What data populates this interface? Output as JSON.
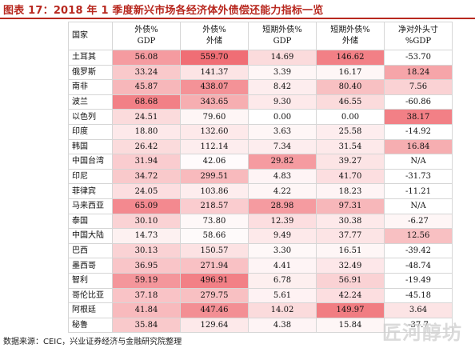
{
  "title": "图表 17：2018 年 1 季度新兴市场各经济体外债偿还能力指标一览",
  "headers": [
    {
      "lines": [
        "国家"
      ]
    },
    {
      "lines": [
        "外债%",
        "GDP"
      ]
    },
    {
      "lines": [
        "外债%",
        "外储"
      ]
    },
    {
      "lines": [
        "短期外债%",
        "GDP"
      ]
    },
    {
      "lines": [
        "短期外债%",
        "外储"
      ]
    },
    {
      "lines": [
        "净对外头寸",
        "%GDP"
      ]
    }
  ],
  "rows": [
    {
      "country": "土耳其",
      "values": [
        "56.08",
        "559.70",
        "14.69",
        "146.62",
        "-53.70"
      ],
      "shade": [
        0.55,
        0.8,
        0.2,
        0.7,
        0.0
      ]
    },
    {
      "country": "俄罗斯",
      "values": [
        "33.24",
        "141.37",
        "3.39",
        "16.17",
        "18.24"
      ],
      "shade": [
        0.3,
        0.15,
        0.05,
        0.05,
        0.5
      ]
    },
    {
      "country": "南非",
      "values": [
        "45.87",
        "438.07",
        "8.42",
        "80.40",
        "7.56"
      ],
      "shade": [
        0.4,
        0.6,
        0.1,
        0.35,
        0.25
      ]
    },
    {
      "country": "波兰",
      "values": [
        "68.68",
        "343.65",
        "9.30",
        "46.55",
        "-60.86"
      ],
      "shade": [
        0.7,
        0.45,
        0.12,
        0.2,
        0.0
      ]
    },
    {
      "country": "以色列",
      "values": [
        "24.51",
        "79.60",
        "0.00",
        "0.00",
        "38.17"
      ],
      "shade": [
        0.2,
        0.05,
        0.0,
        0.0,
        0.7
      ]
    },
    {
      "country": "印度",
      "values": [
        "18.80",
        "132.60",
        "3.63",
        "25.58",
        "-14.92"
      ],
      "shade": [
        0.12,
        0.12,
        0.05,
        0.1,
        0.0
      ]
    },
    {
      "country": "韩国",
      "values": [
        "26.42",
        "112.14",
        "7.34",
        "31.54",
        "16.84"
      ],
      "shade": [
        0.2,
        0.1,
        0.1,
        0.12,
        0.45
      ]
    },
    {
      "country": "中国台湾",
      "values": [
        "31.94",
        "42.06",
        "29.82",
        "39.27",
        "N/A"
      ],
      "shade": [
        0.28,
        0.02,
        0.55,
        0.15,
        0.0
      ]
    },
    {
      "country": "印尼",
      "values": [
        "34.72",
        "299.51",
        "4.83",
        "41.70",
        "-31.73"
      ],
      "shade": [
        0.3,
        0.38,
        0.06,
        0.18,
        0.0
      ]
    },
    {
      "country": "菲律宾",
      "values": [
        "24.05",
        "103.86",
        "4.22",
        "18.23",
        "-11.21"
      ],
      "shade": [
        0.18,
        0.1,
        0.05,
        0.06,
        0.0
      ]
    },
    {
      "country": "马来西亚",
      "values": [
        "65.09",
        "218.57",
        "28.98",
        "97.31",
        "N/A"
      ],
      "shade": [
        0.65,
        0.28,
        0.55,
        0.4,
        0.0
      ]
    },
    {
      "country": "泰国",
      "values": [
        "30.10",
        "73.80",
        "12.39",
        "30.38",
        "-6.27"
      ],
      "shade": [
        0.25,
        0.04,
        0.18,
        0.12,
        0.05
      ]
    },
    {
      "country": "中国大陆",
      "values": [
        "14.73",
        "58.66",
        "9.49",
        "37.77",
        "12.56"
      ],
      "shade": [
        0.08,
        0.03,
        0.12,
        0.15,
        0.35
      ]
    },
    {
      "country": "巴西",
      "values": [
        "30.13",
        "150.57",
        "3.30",
        "16.51",
        "-39.42"
      ],
      "shade": [
        0.25,
        0.16,
        0.04,
        0.05,
        0.0
      ]
    },
    {
      "country": "墨西哥",
      "values": [
        "36.95",
        "271.94",
        "4.41",
        "32.49",
        "-48.74"
      ],
      "shade": [
        0.32,
        0.34,
        0.06,
        0.13,
        0.0
      ]
    },
    {
      "country": "智利",
      "values": [
        "59.19",
        "496.91",
        "6.78",
        "56.91",
        "-19.49"
      ],
      "shade": [
        0.58,
        0.7,
        0.09,
        0.25,
        0.0
      ]
    },
    {
      "country": "哥伦比亚",
      "values": [
        "37.18",
        "279.75",
        "5.61",
        "42.24",
        "-45.18"
      ],
      "shade": [
        0.33,
        0.35,
        0.07,
        0.18,
        0.0
      ]
    },
    {
      "country": "阿根廷",
      "values": [
        "41.84",
        "447.46",
        "14.02",
        "149.97",
        "3.64"
      ],
      "shade": [
        0.38,
        0.62,
        0.2,
        0.72,
        0.15
      ]
    },
    {
      "country": "秘鲁",
      "values": [
        "35.84",
        "129.64",
        "4.38",
        "15.84",
        "-37.7"
      ],
      "shade": [
        0.3,
        0.12,
        0.06,
        0.05,
        0.0
      ]
    }
  ],
  "source": "数据来源：CEIC，兴业证券经济与金融研究院整理",
  "watermark": "匠河醇坊",
  "colors": {
    "title": "#b8281f",
    "heat_max": "#ec4a52",
    "header_fill": "#ffffff"
  }
}
